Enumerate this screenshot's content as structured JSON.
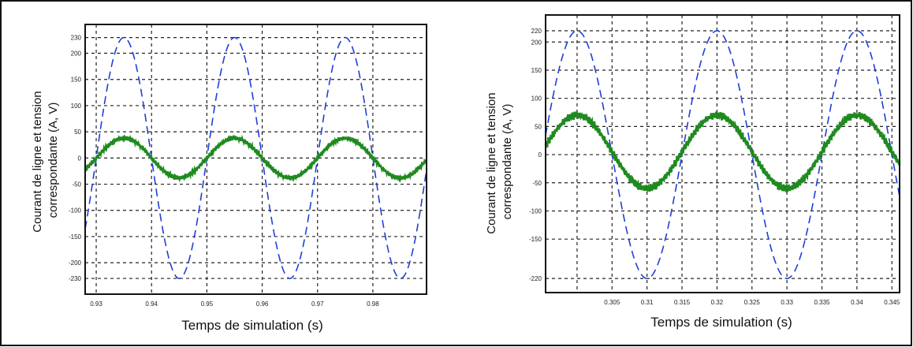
{
  "chart_data": [
    {
      "type": "line",
      "xlabel": "Temps de simulation (s)",
      "ylabel_lines": [
        "Courant de ligne et tension",
        "correspondante (A, V)"
      ],
      "xlim": [
        0.928,
        0.9897
      ],
      "ylim": [
        -260,
        255
      ],
      "x_ticks": [
        0.93,
        0.94,
        0.95,
        0.96,
        0.97,
        0.98
      ],
      "x_tick_labels": [
        "0.93",
        "0.94",
        "0.95",
        "0.96",
        "0.97",
        "0.98"
      ],
      "y_ticks": [
        -230,
        -200,
        -150,
        -100,
        -50,
        0,
        50,
        100,
        150,
        200,
        230
      ],
      "y_tick_labels": [
        "-230",
        "-200",
        "-150",
        "-100",
        "-50",
        "0",
        "50",
        "100",
        "150",
        "200",
        "230"
      ],
      "grid": true,
      "series": [
        {
          "style": "dashed",
          "color": "#1f3fd8",
          "amplitude": 230,
          "frequency_hz": 50,
          "peak_time": 0.935
        },
        {
          "style": "solid",
          "color": "#1f8a1f",
          "amplitude": 38,
          "frequency_hz": 50,
          "peak_time": 0.935,
          "ripple": 5
        }
      ]
    },
    {
      "type": "line",
      "xlabel": "Temps de simulation (s)",
      "ylabel_lines": [
        "Courant de ligne et tension",
        "correspondante (A, V)"
      ],
      "xlim": [
        0.2955,
        0.3461
      ],
      "ylim": [
        -245,
        248
      ],
      "x_ticks": [
        0.3,
        0.305,
        0.31,
        0.315,
        0.32,
        0.325,
        0.33,
        0.335,
        0.34,
        0.345
      ],
      "x_tick_labels": [
        "0.305",
        "0.31",
        "0.315",
        "0.32",
        "0.325",
        "0.33",
        "0.335",
        "0.34",
        "0.345"
      ],
      "x_tick_label_values": [
        0.305,
        0.31,
        0.315,
        0.32,
        0.325,
        0.33,
        0.335,
        0.34,
        0.345
      ],
      "y_ticks": [
        -220,
        -150,
        -100,
        -50,
        0,
        50,
        100,
        150,
        200,
        220
      ],
      "y_tick_labels": [
        "-220",
        "-150",
        "-100",
        "-50",
        "0",
        "50",
        "100",
        "150",
        "200",
        "220"
      ],
      "grid": true,
      "series": [
        {
          "style": "dashed",
          "color": "#1f3fd8",
          "amplitude": 220,
          "frequency_hz": 50,
          "peak_time": 0.3,
          "offset": 0
        },
        {
          "style": "solid",
          "color": "#1f8a1f",
          "amplitude": 65,
          "frequency_hz": 50,
          "peak_time": 0.3,
          "offset": 5,
          "ripple": 8
        }
      ]
    }
  ]
}
